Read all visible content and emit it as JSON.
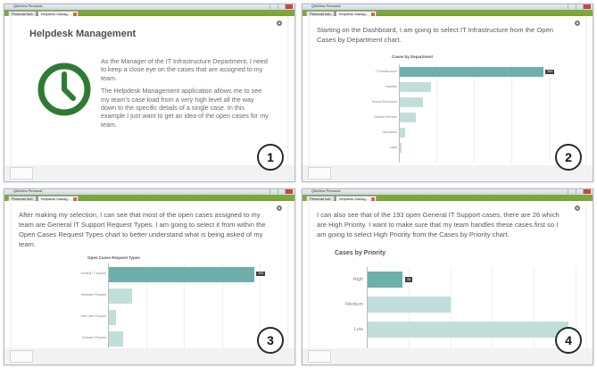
{
  "colors": {
    "selected_bar": "#6bb0aa",
    "bar": "#c2dedb",
    "clock_green": "#2e7c33",
    "tab_strip": "#7ea83a"
  },
  "window": {
    "title": "QlikView Personal",
    "tabs": [
      "Personal hub",
      "Helpdesk Manag..."
    ]
  },
  "step1": {
    "heading": "Helpdesk Management",
    "para1": "As the Manager of the IT Infrastructure Department, I need to keep a close eye on the cases that are assigned to my team.",
    "para2": "The Helpdesk Management application allows me to see my team's case load from a very high level all the way down to the specific details of a single case. In this example I just want to get an idea of the open cases for my team.",
    "badge": "1"
  },
  "step2": {
    "text": "Starting on the Dashboard, I am going to select IT Infrastructure from the Open Cases by Department chart.",
    "badge": "2"
  },
  "step3": {
    "text": "After making my selection, I can see that most of the open cases assigned to my team are General IT Support Request Types. I am going to select it from within the Open Cases Request Types chart to better understand what is being asked of my team.",
    "badge": "3"
  },
  "step4": {
    "text": "I can also see that of the 193 open General IT Support cases, there are 26 which are High Priority. I want to make sure that my team handles these cases first so I am going to select High Priority from the Cases by Priority chart.",
    "badge": "4"
  },
  "chart_data": [
    {
      "type": "bar",
      "orientation": "horizontal",
      "title": "Cases by Department",
      "categories": [
        "IT Infrastructure",
        "Facilities",
        "Human Resources",
        "Student Services",
        "Operations",
        "Legal"
      ],
      "values": [
        264,
        58,
        42,
        30,
        10,
        3
      ],
      "selected": "IT Infrastructure",
      "value_label": "264"
    },
    {
      "type": "bar",
      "orientation": "horizontal",
      "title": "Open Cases Request Types",
      "categories": [
        "General IT Support",
        "Hardware Request",
        "New User Request",
        "Software Request"
      ],
      "values": [
        193,
        31,
        10,
        19
      ],
      "selected": "General IT Support",
      "value_label": "193"
    },
    {
      "type": "bar",
      "orientation": "horizontal",
      "title": "Cases by Priority",
      "categories": [
        "High",
        "Medium",
        "Low"
      ],
      "values": [
        26,
        62,
        150
      ],
      "selected": "High",
      "value_label": "26"
    }
  ]
}
